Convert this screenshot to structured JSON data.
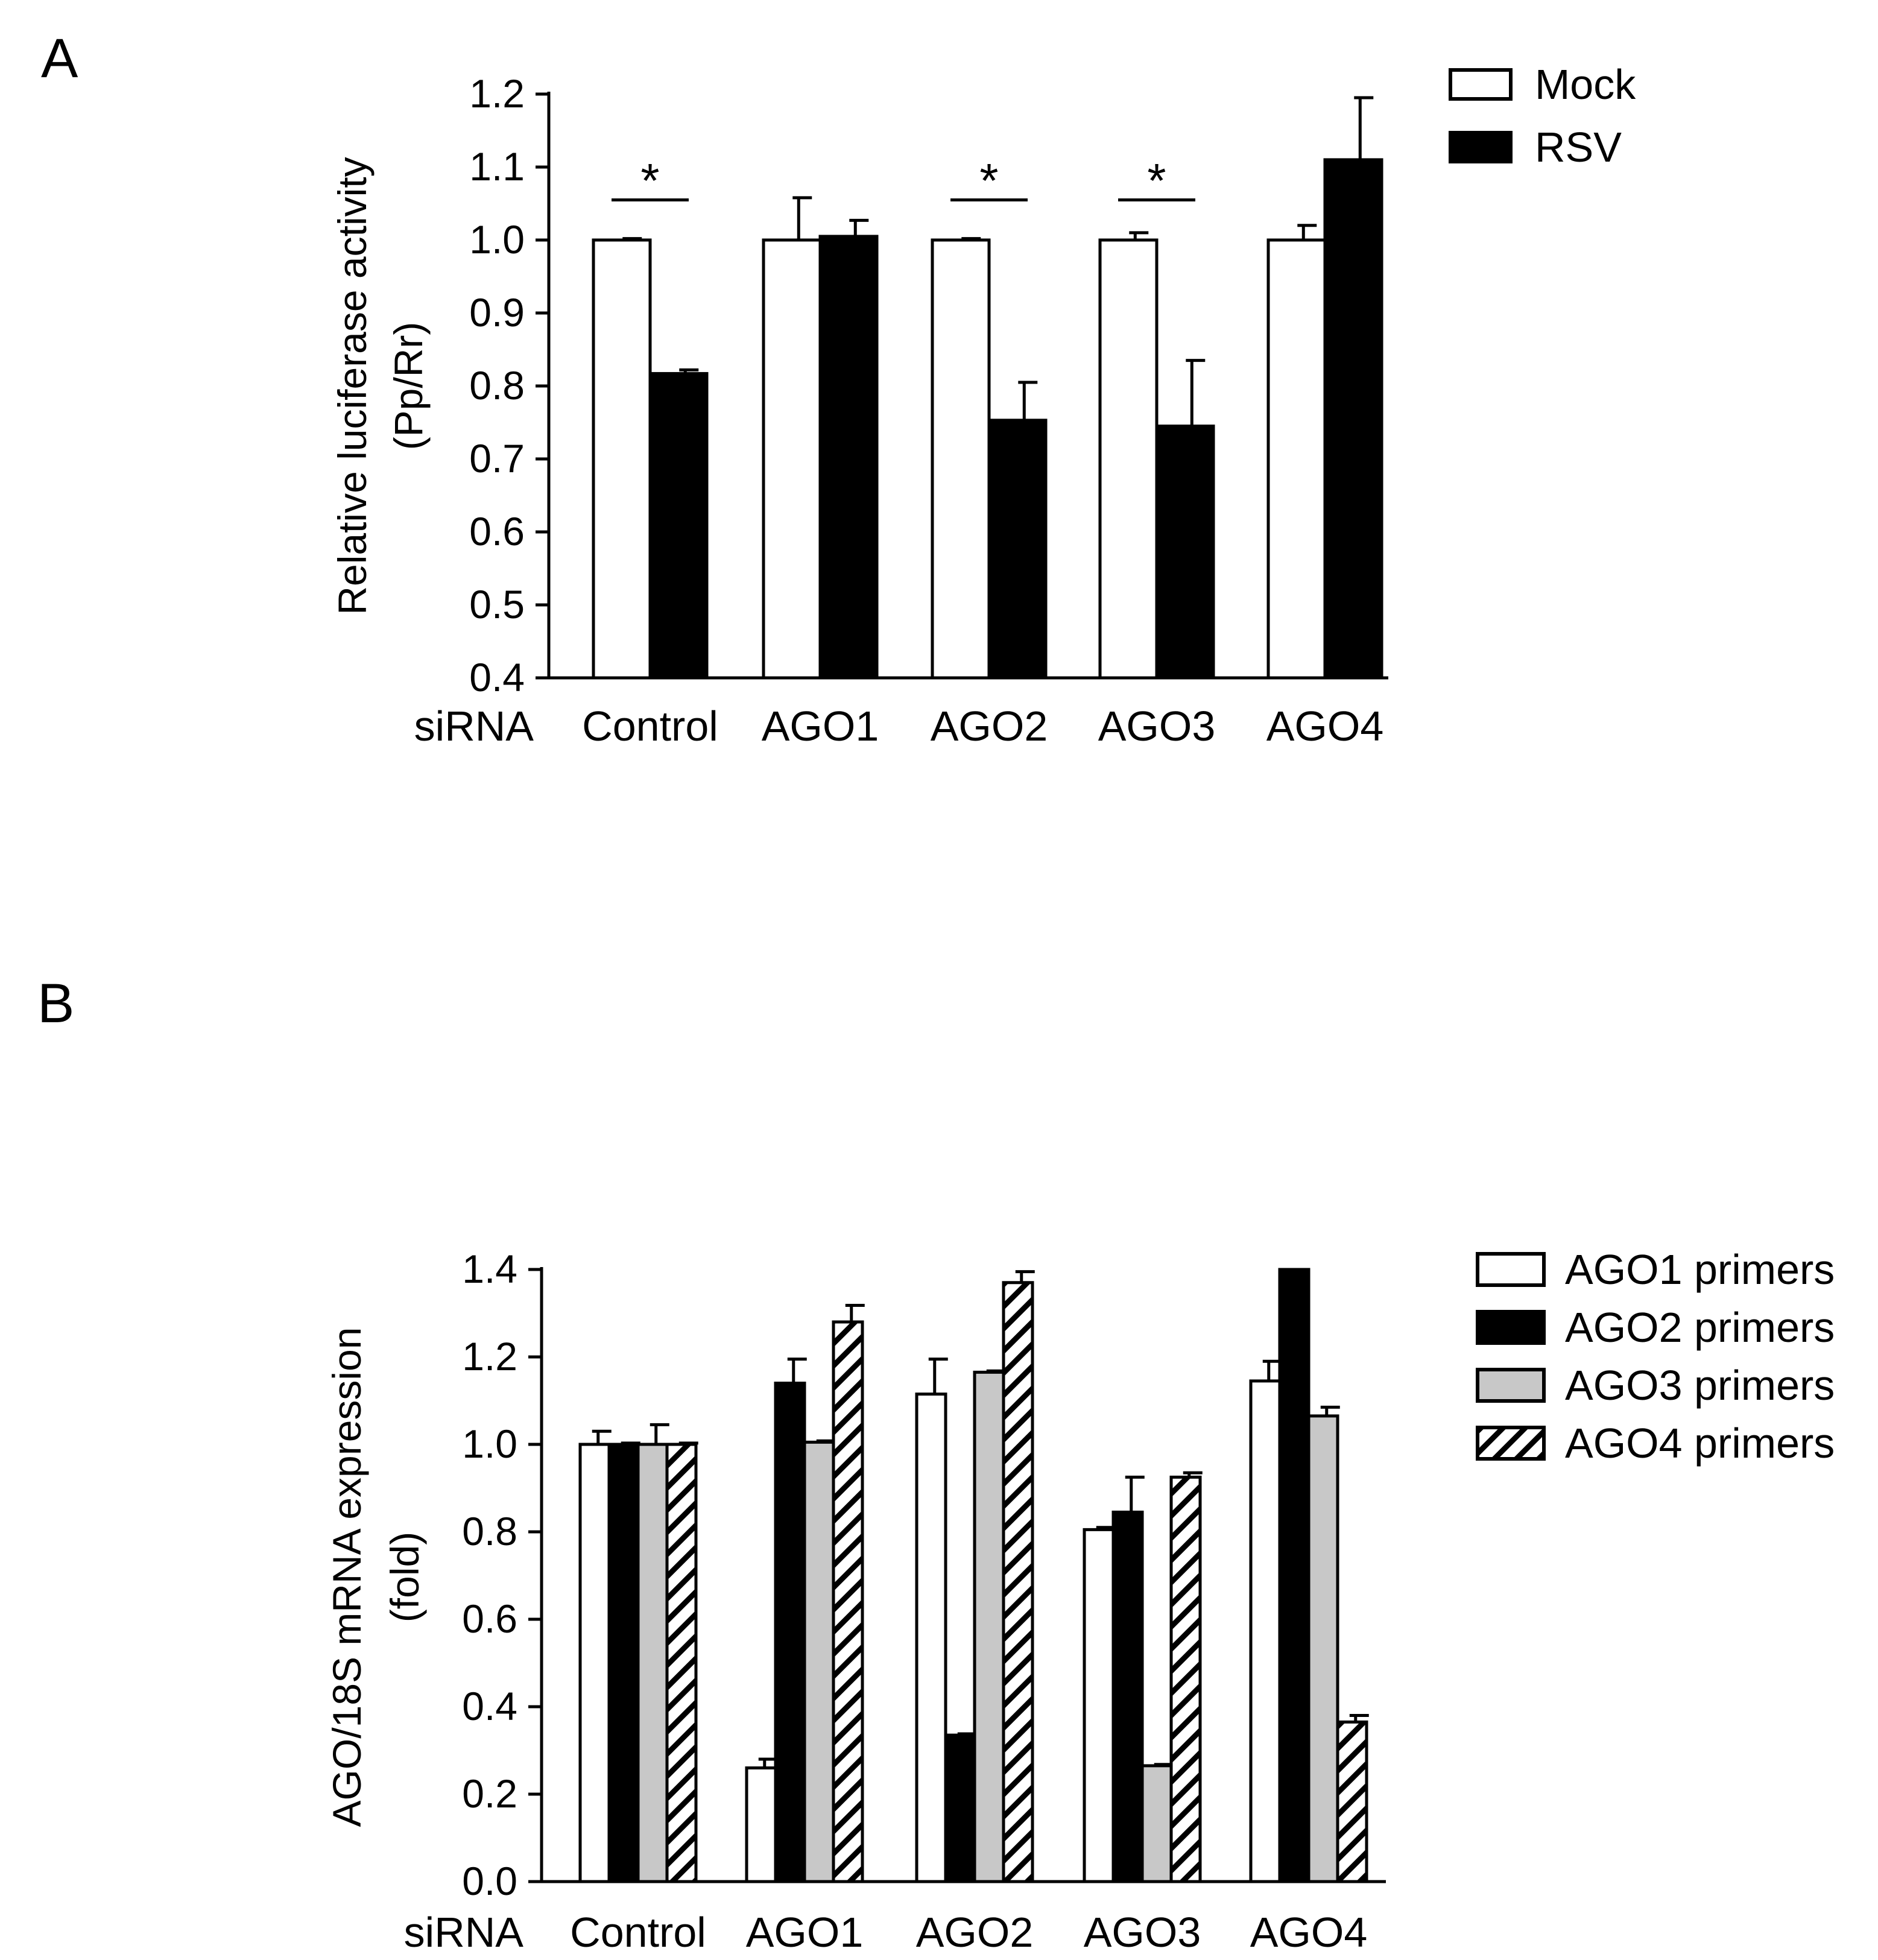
{
  "chart_data": [
    {
      "panel": "A",
      "type": "bar",
      "title": "",
      "xlabel": "siRNA",
      "ylabel": [
        "Relative luciferase activity",
        "(Pp/Rr)"
      ],
      "ylim": [
        0.4,
        1.2
      ],
      "yticks": [
        "0.4",
        "0.5",
        "0.6",
        "0.7",
        "0.8",
        "0.9",
        "1.0",
        "1.1",
        "1.2"
      ],
      "categories": [
        "Control",
        "AGO1",
        "AGO2",
        "AGO3",
        "AGO4"
      ],
      "series": [
        {
          "name": "Mock",
          "fill": "white",
          "values": [
            1.0,
            1.0,
            1.0,
            1.0,
            1.0
          ],
          "errors": [
            0.002,
            0.058,
            0.002,
            0.01,
            0.02
          ]
        },
        {
          "name": "RSV",
          "fill": "black",
          "values": [
            0.817,
            1.005,
            0.753,
            0.745,
            1.11
          ],
          "errors": [
            0.005,
            0.022,
            0.052,
            0.09,
            0.085
          ]
        }
      ],
      "significance": [
        {
          "category": "Control",
          "label": "*"
        },
        {
          "category": "AGO2",
          "label": "*"
        },
        {
          "category": "AGO3",
          "label": "*"
        }
      ]
    },
    {
      "panel": "B",
      "type": "bar",
      "title": "",
      "xlabel": "siRNA",
      "ylabel": [
        "AGO/18S mRNA expression",
        "(fold)"
      ],
      "ylim": [
        0.0,
        1.4
      ],
      "yticks": [
        "0.0",
        "0.2",
        "0.4",
        "0.6",
        "0.8",
        "1.0",
        "1.2",
        "1.4"
      ],
      "categories": [
        "Control",
        "AGO1",
        "AGO2",
        "AGO3",
        "AGO4"
      ],
      "series": [
        {
          "name": "AGO1 primers",
          "fill": "white",
          "values": [
            1.0,
            0.26,
            1.115,
            0.805,
            1.145
          ],
          "errors": [
            0.03,
            0.02,
            0.08,
            0.005,
            0.045
          ]
        },
        {
          "name": "AGO2 primers",
          "fill": "black",
          "values": [
            1.0,
            1.14,
            0.335,
            0.845,
            1.4
          ],
          "errors": [
            0.003,
            0.055,
            0.003,
            0.08,
            0.0
          ]
        },
        {
          "name": "AGO3 primers",
          "fill": "lightgray",
          "values": [
            1.0,
            1.005,
            1.165,
            0.265,
            1.065
          ],
          "errors": [
            0.045,
            0.003,
            0.003,
            0.003,
            0.02
          ]
        },
        {
          "name": "AGO4 primers",
          "fill": "hatched",
          "values": [
            1.0,
            1.28,
            1.37,
            0.925,
            0.365
          ],
          "errors": [
            0.003,
            0.038,
            0.025,
            0.01,
            0.015
          ]
        }
      ]
    }
  ],
  "colors": {
    "black": "#000000",
    "white": "#ffffff",
    "lightgray": "#c8c8c8"
  }
}
